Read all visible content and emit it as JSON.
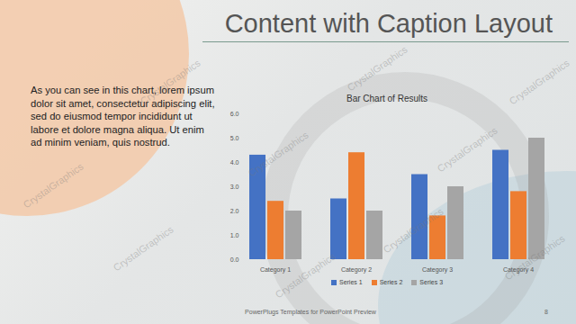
{
  "slide": {
    "title": "Content with Caption Layout",
    "caption": "As you can see in this chart, lorem ipsum dolor sit amet, consectetur adipiscing elit, sed do eiusmod tempor incididunt ut labore et dolore magna aliqua. Ut enim ad minim veniam, quis nostrud.",
    "footer": "PowerPlugs Templates for PowerPoint Preview",
    "page": "8",
    "watermark": "CrystalGraphics"
  },
  "chart_data": {
    "type": "bar",
    "title": "Bar Chart of Results",
    "categories": [
      "Category 1",
      "Category 2",
      "Category 3",
      "Category 4"
    ],
    "series": [
      {
        "name": "Series 1",
        "color": "#4472c4",
        "values": [
          4.3,
          2.5,
          3.5,
          4.5
        ]
      },
      {
        "name": "Series 2",
        "color": "#ed7d31",
        "values": [
          2.4,
          4.4,
          1.8,
          2.8
        ]
      },
      {
        "name": "Series 3",
        "color": "#a5a5a5",
        "values": [
          2.0,
          2.0,
          3.0,
          5.0
        ]
      }
    ],
    "ylim": [
      0,
      6
    ],
    "yticks": [
      0,
      1,
      2,
      3,
      4,
      5,
      6
    ],
    "grid": false,
    "legend": "bottom"
  }
}
